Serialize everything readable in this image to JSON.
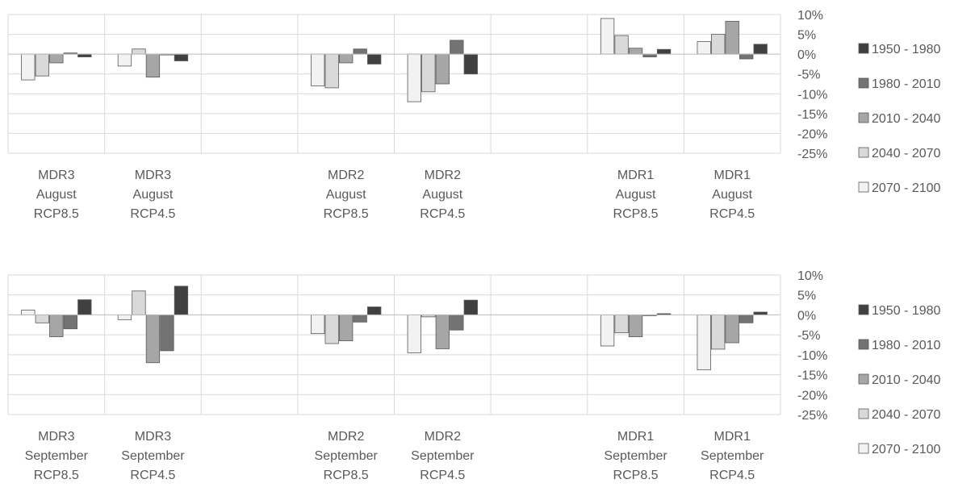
{
  "chart_data": [
    {
      "type": "bar",
      "title": "",
      "xlabel": "",
      "ylabel": "",
      "ylim": [
        -25,
        10
      ],
      "yticks": [
        "10%",
        "5%",
        "0%",
        "-5%",
        "-10%",
        "-15%",
        "-20%",
        "-25%"
      ],
      "ytick_values": [
        10,
        5,
        0,
        -5,
        -10,
        -15,
        -20,
        -25
      ],
      "grid": true,
      "legend_position": "right",
      "categories": [
        [
          "MDR3",
          "August",
          "RCP8.5"
        ],
        [
          "MDR3",
          "August",
          "RCP4.5"
        ],
        [
          "",
          "",
          ""
        ],
        [
          "MDR2",
          "August",
          "RCP8.5"
        ],
        [
          "MDR2",
          "August",
          "RCP4.5"
        ],
        [
          "",
          "",
          ""
        ],
        [
          "MDR1",
          "August",
          "RCP8.5"
        ],
        [
          "MDR1",
          "August",
          "RCP4.5"
        ]
      ],
      "series": [
        {
          "name": "2070 - 2100",
          "color": "#f2f2f2",
          "values": [
            -6.5,
            -3,
            null,
            -8,
            -12,
            null,
            9,
            3.2
          ]
        },
        {
          "name": "2040 - 2070",
          "color": "#d9d9d9",
          "values": [
            -5.5,
            1.3,
            null,
            -8.5,
            -9.5,
            null,
            4.7,
            5
          ]
        },
        {
          "name": "2010 - 2040",
          "color": "#a6a6a6",
          "values": [
            -2.2,
            -5.8,
            null,
            -2.2,
            -7.5,
            null,
            1.5,
            8.3
          ]
        },
        {
          "name": "1980 - 2010",
          "color": "#737373",
          "values": [
            0.3,
            -0.2,
            null,
            1.3,
            3.5,
            null,
            -0.7,
            -1.2
          ]
        },
        {
          "name": "1950 - 1980",
          "color": "#404040",
          "values": [
            -0.7,
            -1.7,
            null,
            -2.5,
            -5,
            null,
            1.2,
            2.5
          ]
        }
      ]
    },
    {
      "type": "bar",
      "title": "",
      "xlabel": "",
      "ylabel": "",
      "ylim": [
        -25,
        10
      ],
      "yticks": [
        "10%",
        "5%",
        "0%",
        "-5%",
        "-10%",
        "-15%",
        "-20%",
        "-25%"
      ],
      "ytick_values": [
        10,
        5,
        0,
        -5,
        -10,
        -15,
        -20,
        -25
      ],
      "grid": true,
      "legend_position": "right",
      "categories": [
        [
          "MDR3",
          "September",
          "RCP8.5"
        ],
        [
          "MDR3",
          "September",
          "RCP4.5"
        ],
        [
          "",
          "",
          ""
        ],
        [
          "MDR2",
          "September",
          "RCP8.5"
        ],
        [
          "MDR2",
          "September",
          "RCP4.5"
        ],
        [
          "",
          "",
          ""
        ],
        [
          "MDR1",
          "September",
          "RCP8.5"
        ],
        [
          "MDR1",
          "September",
          "RCP4.5"
        ]
      ],
      "series": [
        {
          "name": "2070 - 2100",
          "color": "#f2f2f2",
          "values": [
            1.2,
            -1.2,
            null,
            -4.7,
            -9.5,
            null,
            -7.8,
            -13.8
          ]
        },
        {
          "name": "2040 - 2070",
          "color": "#d9d9d9",
          "values": [
            -2,
            6,
            null,
            -7.2,
            -0.5,
            null,
            -4.5,
            -8.6
          ]
        },
        {
          "name": "2010 - 2040",
          "color": "#a6a6a6",
          "values": [
            -5.5,
            -12,
            null,
            -6.5,
            -8.5,
            null,
            -5.5,
            -7
          ]
        },
        {
          "name": "1980 - 2010",
          "color": "#737373",
          "values": [
            -3.5,
            -9,
            null,
            -1.8,
            -3.8,
            null,
            -0.2,
            -2
          ]
        },
        {
          "name": "1950 - 1980",
          "color": "#404040",
          "values": [
            3.8,
            7.2,
            null,
            2,
            3.7,
            null,
            0.3,
            0.7
          ]
        }
      ]
    }
  ],
  "legend": [
    {
      "name": "1950 - 1980",
      "color": "#404040"
    },
    {
      "name": "1980 - 2010",
      "color": "#737373"
    },
    {
      "name": "2010 - 2040",
      "color": "#a6a6a6"
    },
    {
      "name": "2040 - 2070",
      "color": "#d9d9d9"
    },
    {
      "name": "2070 - 2100",
      "color": "#f2f2f2"
    }
  ]
}
